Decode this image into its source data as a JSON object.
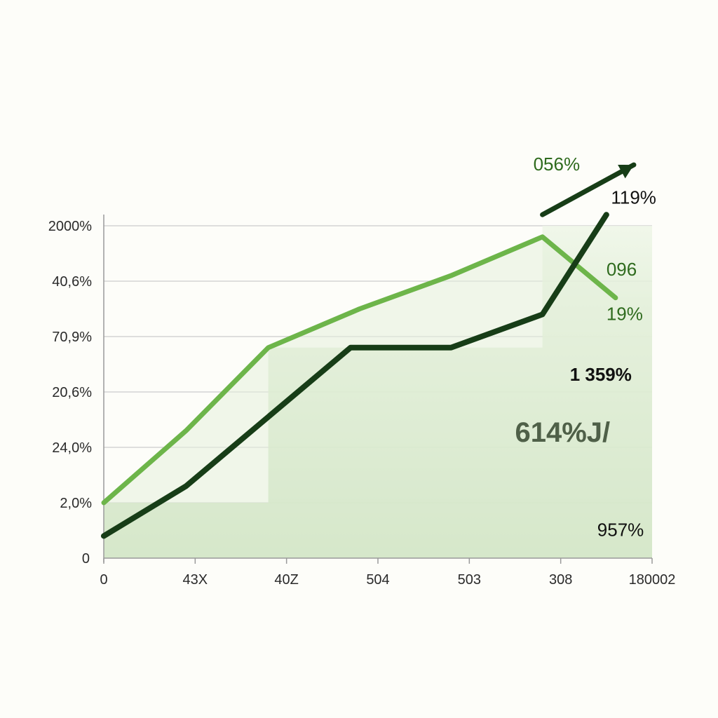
{
  "colors": {
    "light_series": "#6db54a",
    "dark_series": "#173d17",
    "mid_series": "#4e7f40",
    "fill_top": "#eaf3e1",
    "fill_bottom": "#b9d7a8",
    "grid": "#d4d4d4",
    "axis": "#9a9a9a",
    "label_green": "#2f6b1e",
    "label_dark": "#111111",
    "label_gray": "#4f6048"
  },
  "chart_data": {
    "type": "line",
    "x_tick_labels": [
      "0",
      "43X",
      "40Z",
      "504",
      "503",
      "308",
      "180002"
    ],
    "y_tick_labels": [
      "0",
      "2,0%",
      "24,0%",
      "20,6%",
      "70,9%",
      "40,6%",
      "2000%"
    ],
    "y_tick_values": [
      0,
      1,
      2,
      3,
      4,
      5,
      6
    ],
    "x_range": [
      0,
      6
    ],
    "y_range": [
      0,
      6
    ],
    "grid": true,
    "series": [
      {
        "key": "light",
        "points": [
          [
            0,
            1.0
          ],
          [
            0.9,
            2.3
          ],
          [
            1.8,
            3.8
          ],
          [
            2.8,
            4.5
          ],
          [
            3.8,
            5.1
          ],
          [
            4.8,
            5.8
          ],
          [
            5.6,
            4.7
          ]
        ]
      },
      {
        "key": "dark",
        "points": [
          [
            0,
            0.4
          ],
          [
            0.9,
            1.3
          ],
          [
            2.7,
            3.8
          ],
          [
            3.8,
            3.8
          ],
          [
            4.8,
            4.4
          ],
          [
            5.5,
            6.2
          ]
        ]
      }
    ],
    "arrow": {
      "from": [
        4.8,
        6.2
      ],
      "to": [
        5.8,
        7.1
      ]
    },
    "annotations": [
      {
        "text": "056%",
        "x": 4.7,
        "y": 7.0,
        "style": "green"
      },
      {
        "text": "119%",
        "x": 5.55,
        "y": 6.4,
        "style": "dark"
      },
      {
        "text": "096",
        "x": 5.5,
        "y": 5.1,
        "style": "green"
      },
      {
        "text": "19%",
        "x": 5.5,
        "y": 4.3,
        "style": "green"
      },
      {
        "text": "1  359%",
        "x": 5.1,
        "y": 3.2,
        "style": "dark-bold"
      },
      {
        "text": "614%J/",
        "x": 4.5,
        "y": 2.1,
        "style": "gray-big"
      },
      {
        "text": "957%",
        "x": 5.4,
        "y": 0.4,
        "style": "dark"
      }
    ]
  }
}
